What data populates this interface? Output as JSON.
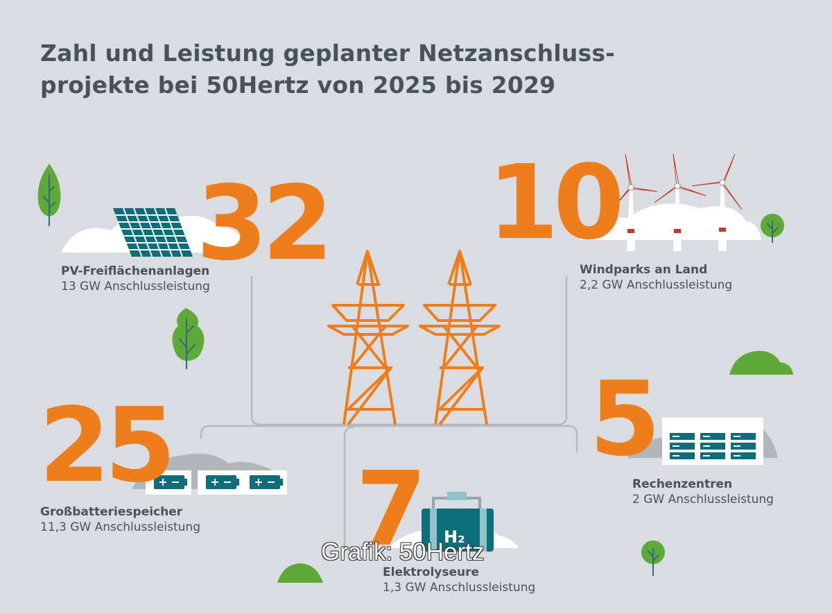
{
  "title": {
    "line1": "Zahl und Leistung geplanter Netzanschluss-",
    "line2": "projekte bei 50Hertz von 2025 bis 2029"
  },
  "categories": {
    "pv": {
      "count": "32",
      "name": "PV-Freiflächenanlagen",
      "capacity": "13 GW Anschlussleistung"
    },
    "wind": {
      "count": "10",
      "name": "Windparks an Land",
      "capacity": "2,2 GW Anschlussleistung"
    },
    "battery": {
      "count": "25",
      "name": "Großbatteriespeicher",
      "capacity": "11,3 GW Anschlussleistung"
    },
    "datacenter": {
      "count": "5",
      "name": "Rechenzentren",
      "capacity": "2 GW Anschlussleistung"
    },
    "electrolyser": {
      "count": "7",
      "name": "Elektrolyseure",
      "capacity": "1,3 GW Anschlussleistung",
      "label": "H₂"
    }
  },
  "credit": "Grafik: 50Hertz",
  "colors": {
    "background": "#d9dde1",
    "accent": "#ee7d1c",
    "text": "#4b5158",
    "teal": "#0b6e78",
    "green": "#5fa83a"
  }
}
